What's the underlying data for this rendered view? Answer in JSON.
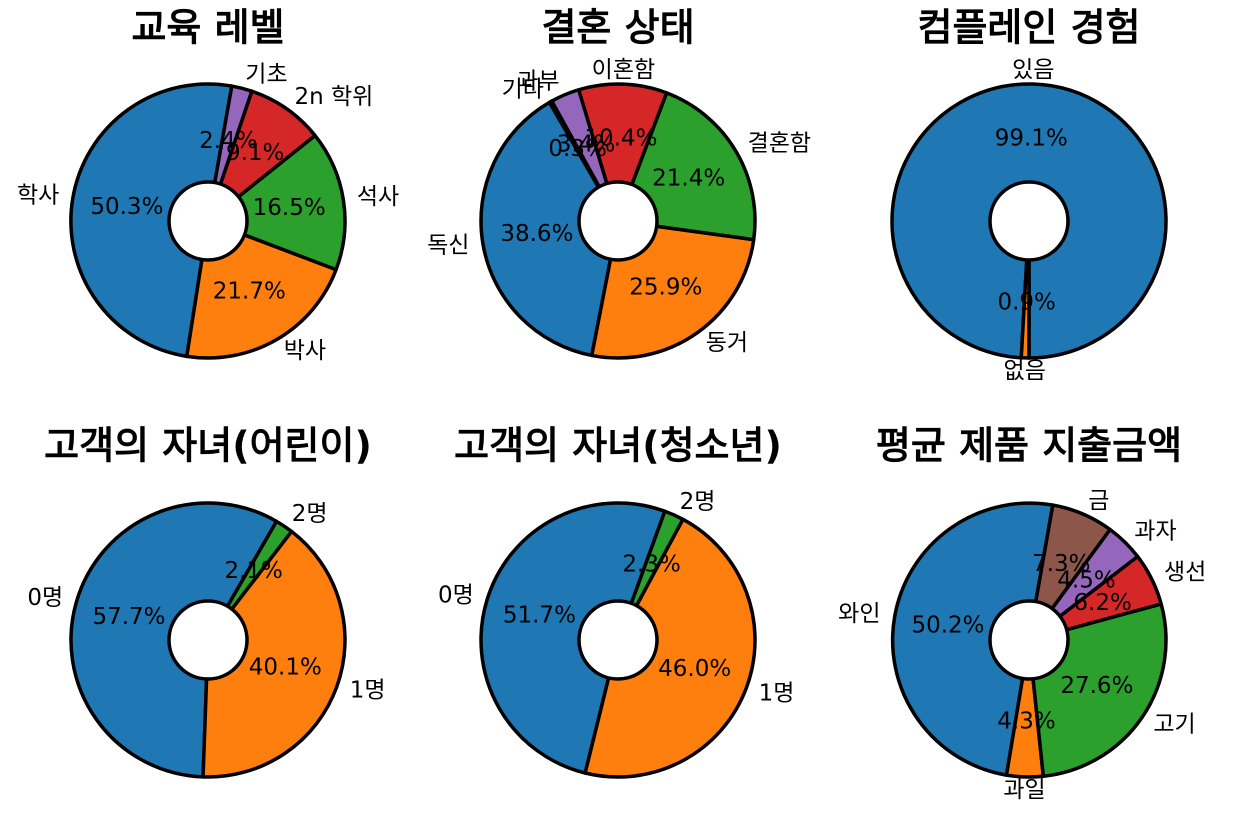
{
  "charts": [
    {
      "type": "pie",
      "title": "교육 레벨",
      "slices": [
        {
          "label": "학사",
          "pct_text": "50.3%",
          "value": 50.3,
          "color": "#1f77b4"
        },
        {
          "label": "박사",
          "pct_text": "21.7%",
          "value": 21.7,
          "color": "#ff7f0e"
        },
        {
          "label": "석사",
          "pct_text": "16.5%",
          "value": 16.5,
          "color": "#2ca02c"
        },
        {
          "label": "2n 학위",
          "pct_text": "9.1%",
          "value": 9.1,
          "color": "#d62728"
        },
        {
          "label": "기초",
          "pct_text": "2.4%",
          "value": 2.4,
          "color": "#9467bd"
        }
      ]
    },
    {
      "type": "pie",
      "title": "결혼 상태",
      "slices": [
        {
          "label": "독신",
          "pct_text": "38.6%",
          "value": 38.6,
          "color": "#1f77b4"
        },
        {
          "label": "동거",
          "pct_text": "25.9%",
          "value": 25.9,
          "color": "#ff7f0e"
        },
        {
          "label": "결혼함",
          "pct_text": "21.4%",
          "value": 21.4,
          "color": "#2ca02c"
        },
        {
          "label": "이혼함",
          "pct_text": "10.4%",
          "value": 10.4,
          "color": "#d62728"
        },
        {
          "label": "과부",
          "pct_text": "3.4%",
          "value": 3.4,
          "color": "#9467bd"
        },
        {
          "label": "기타",
          "pct_text": "0.3%",
          "value": 0.3,
          "color": "#8c564b"
        }
      ]
    },
    {
      "type": "pie",
      "title": "컴플레인 경험",
      "slices": [
        {
          "label": "있음",
          "pct_text": "99.1%",
          "value": 99.1,
          "color": "#1f77b4"
        },
        {
          "label": "없음",
          "pct_text": "0.9%",
          "value": 0.9,
          "color": "#ff7f0e"
        }
      ]
    },
    {
      "type": "pie",
      "title": "고객의 자녀(어린이)",
      "slices": [
        {
          "label": "0명",
          "pct_text": "57.7%",
          "value": 57.7,
          "color": "#1f77b4"
        },
        {
          "label": "1명",
          "pct_text": "40.1%",
          "value": 40.1,
          "color": "#ff7f0e"
        },
        {
          "label": "2명",
          "pct_text": "2.1%",
          "value": 2.1,
          "color": "#2ca02c"
        }
      ]
    },
    {
      "type": "pie",
      "title": "고객의 자녀(청소년)",
      "slices": [
        {
          "label": "0명",
          "pct_text": "51.7%",
          "value": 51.7,
          "color": "#1f77b4"
        },
        {
          "label": "1명",
          "pct_text": "46.0%",
          "value": 46.0,
          "color": "#ff7f0e"
        },
        {
          "label": "2명",
          "pct_text": "2.3%",
          "value": 2.3,
          "color": "#2ca02c"
        }
      ]
    },
    {
      "type": "pie",
      "title": "평균 제품 지출금액",
      "slices": [
        {
          "label": "와인",
          "pct_text": "50.2%",
          "value": 50.2,
          "color": "#1f77b4"
        },
        {
          "label": "과일",
          "pct_text": "4.3%",
          "value": 4.3,
          "color": "#ff7f0e"
        },
        {
          "label": "고기",
          "pct_text": "27.6%",
          "value": 27.6,
          "color": "#2ca02c"
        },
        {
          "label": "생선",
          "pct_text": "6.2%",
          "value": 6.2,
          "color": "#d62728"
        },
        {
          "label": "과자",
          "pct_text": "4.5%",
          "value": 4.5,
          "color": "#9467bd"
        },
        {
          "label": "금",
          "pct_text": "7.3%",
          "value": 7.3,
          "color": "#8c564b"
        }
      ]
    }
  ]
}
